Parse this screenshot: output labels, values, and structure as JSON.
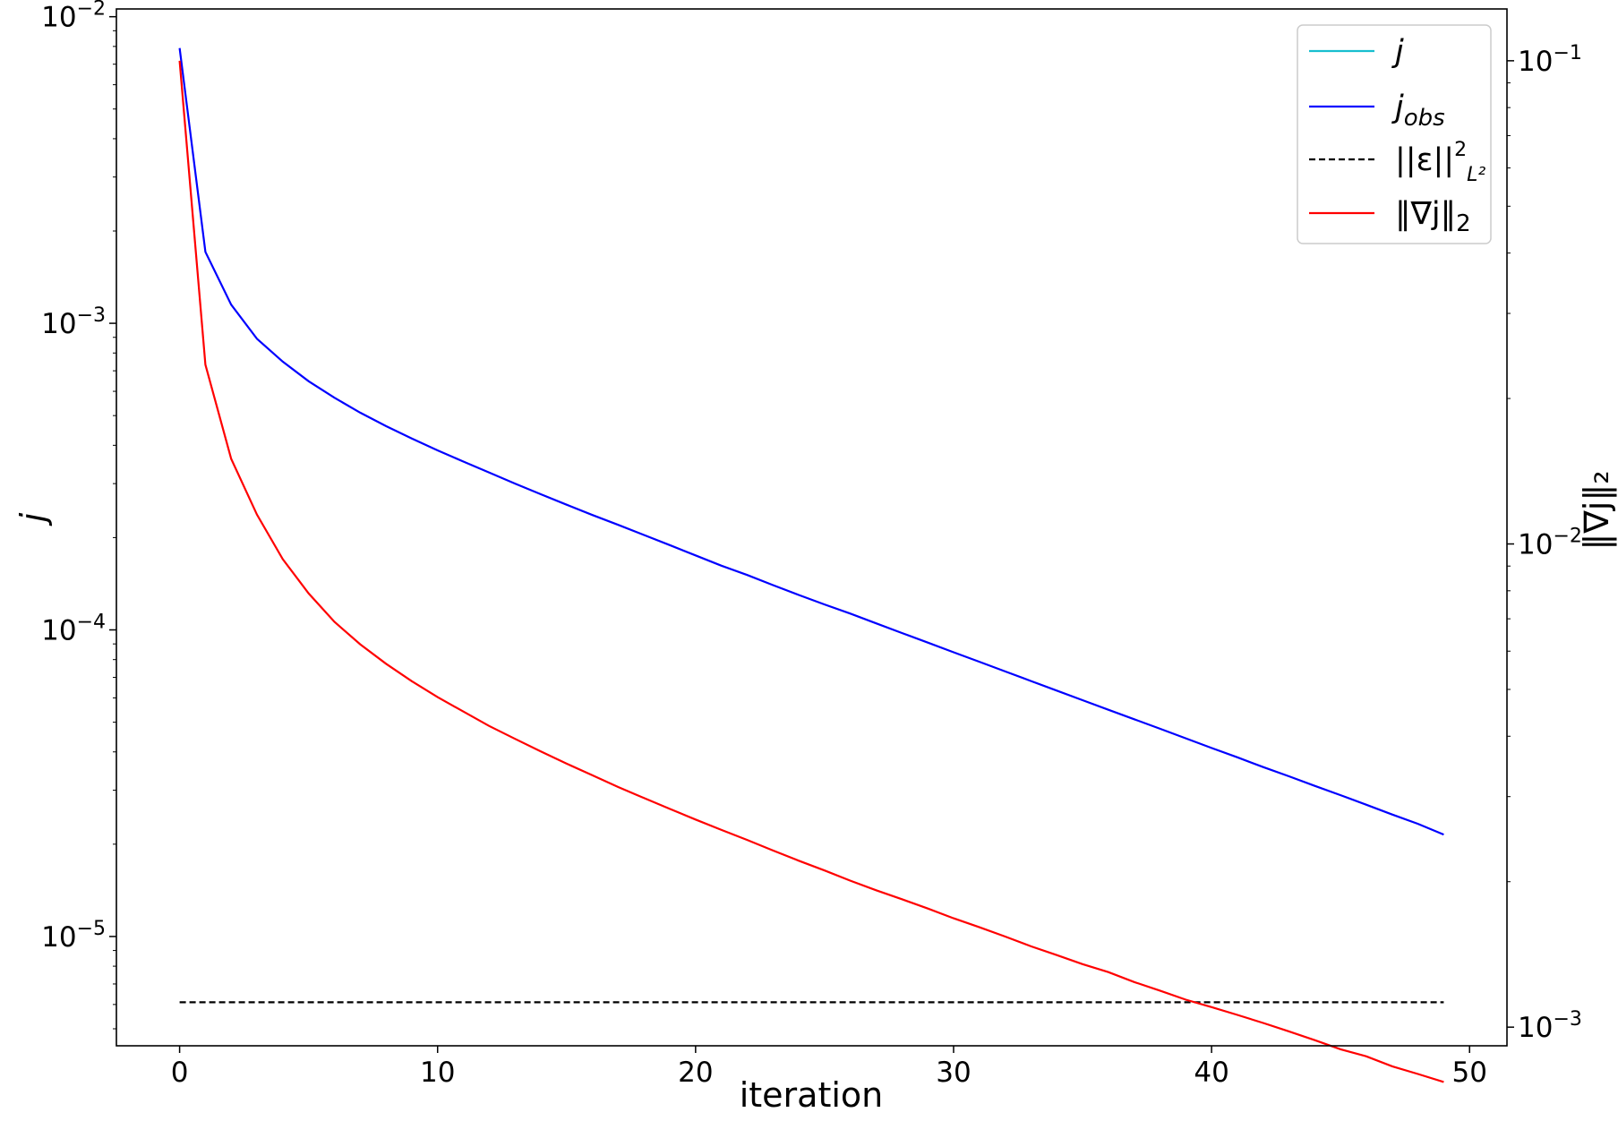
{
  "chart_data": {
    "type": "line",
    "xlabel": "iteration",
    "ylabel_left": "j",
    "ylabel_right": "‖∇j‖₂",
    "x_ticks": [
      0,
      10,
      20,
      30,
      40,
      50
    ],
    "x_range": [
      -2.45,
      51.45
    ],
    "left_axis": {
      "scale": "log",
      "ylim": [
        4.4e-06,
        0.0106
      ],
      "ticks": [
        {
          "value": 0.01,
          "base": "10",
          "exp": "−2"
        },
        {
          "value": 0.001,
          "base": "10",
          "exp": "−3"
        },
        {
          "value": 0.0001,
          "base": "10",
          "exp": "−4"
        },
        {
          "value": 1e-05,
          "base": "10",
          "exp": "−5"
        }
      ]
    },
    "right_axis": {
      "scale": "log",
      "ylim": [
        0.000915,
        0.128
      ],
      "ticks": [
        {
          "value": 0.1,
          "base": "10",
          "exp": "−1"
        },
        {
          "value": 0.01,
          "base": "10",
          "exp": "−2"
        },
        {
          "value": 0.001,
          "base": "10",
          "exp": "−3"
        }
      ]
    },
    "legend": {
      "position": "top-right",
      "entries": [
        {
          "label": "j",
          "color": "#17becf",
          "dash": "solid"
        },
        {
          "label": "j_obs",
          "color": "#0000ff",
          "dash": "solid"
        },
        {
          "label": "||ε||²_L²",
          "color": "#000000",
          "dash": "dashed"
        },
        {
          "label": "‖∇j‖₂",
          "color": "#ff0000",
          "dash": "solid"
        }
      ]
    },
    "series": [
      {
        "name": "j_obs",
        "axis": "left",
        "color": "#0000ff",
        "dash": "solid",
        "x": [
          0,
          1,
          2,
          3,
          4,
          5,
          6,
          7,
          8,
          9,
          10,
          11,
          12,
          13,
          14,
          15,
          16,
          17,
          18,
          19,
          20,
          21,
          22,
          23,
          24,
          25,
          26,
          27,
          28,
          29,
          30,
          31,
          32,
          33,
          34,
          35,
          36,
          37,
          38,
          39,
          40,
          41,
          42,
          43,
          44,
          45,
          46,
          47,
          48,
          49
        ],
        "values": [
          0.0079,
          0.00171,
          0.00115,
          0.00089,
          0.00075,
          0.000647,
          0.000572,
          0.000511,
          0.000462,
          0.000421,
          0.000385,
          0.000354,
          0.000326,
          0.0003,
          0.000277,
          0.000256,
          0.000237,
          0.00022,
          0.000204,
          0.000189,
          0.000175,
          0.000162,
          0.000151,
          0.00014,
          0.00013,
          0.000121,
          0.000113,
          0.000105,
          9.77e-05,
          9.09e-05,
          8.45e-05,
          7.87e-05,
          7.32e-05,
          6.81e-05,
          6.34e-05,
          5.9e-05,
          5.49e-05,
          5.11e-05,
          4.76e-05,
          4.43e-05,
          4.12e-05,
          3.84e-05,
          3.57e-05,
          3.33e-05,
          3.1e-05,
          2.89e-05,
          2.69e-05,
          2.5e-05,
          2.33e-05,
          2.15e-05
        ]
      },
      {
        "name": "||ε||²_L²",
        "axis": "left",
        "color": "#000000",
        "dash": "dashed",
        "x": [
          0,
          49
        ],
        "values": [
          6.1e-06,
          6.1e-06
        ]
      },
      {
        "name": "‖∇j‖₂",
        "axis": "right",
        "color": "#ff0000",
        "dash": "solid",
        "x": [
          0,
          1,
          2,
          3,
          4,
          5,
          6,
          7,
          8,
          9,
          10,
          11,
          12,
          13,
          14,
          15,
          16,
          17,
          18,
          19,
          20,
          21,
          22,
          23,
          24,
          25,
          26,
          27,
          28,
          29,
          30,
          31,
          32,
          33,
          34,
          35,
          36,
          37,
          38,
          39,
          40,
          41,
          42,
          43,
          44,
          45,
          46,
          47,
          48,
          49
        ],
        "values": [
          0.1,
          0.0235,
          0.015,
          0.0115,
          0.0093,
          0.0079,
          0.0069,
          0.0062,
          0.00565,
          0.0052,
          0.00482,
          0.0045,
          0.0042,
          0.00395,
          0.00372,
          0.00351,
          0.00332,
          0.00314,
          0.00298,
          0.00283,
          0.00269,
          0.00256,
          0.00244,
          0.00232,
          0.00221,
          0.00211,
          0.00201,
          0.00192,
          0.00184,
          0.00176,
          0.00168,
          0.00161,
          0.00154,
          0.00147,
          0.00141,
          0.00135,
          0.0013,
          0.00124,
          0.00119,
          0.00114,
          0.0011,
          0.00106,
          0.00102,
          0.00098,
          0.00094,
          0.0009,
          0.00087,
          0.00083,
          0.0008,
          0.00077
        ]
      }
    ]
  }
}
